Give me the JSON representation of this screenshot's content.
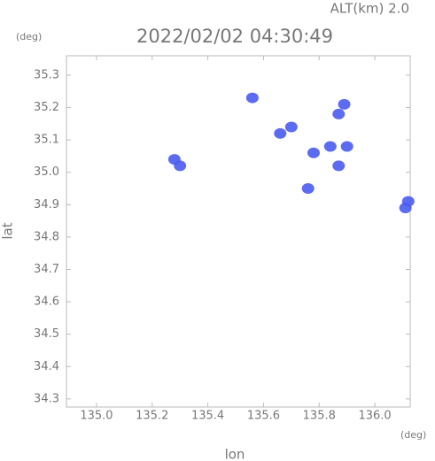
{
  "chart_data": {
    "type": "scatter",
    "title": "2022/02/02 04:30:49",
    "altitude_label": "ALT(km) 2.0",
    "y_unit": "(deg)",
    "x_unit": "(deg)",
    "xlabel": "lon",
    "ylabel": "lat",
    "x": [
      135.56,
      135.66,
      135.7,
      135.89,
      135.87,
      135.84,
      135.9,
      135.78,
      135.87,
      135.3,
      135.28,
      135.76,
      136.11,
      136.12
    ],
    "values": [
      35.23,
      35.12,
      35.14,
      35.21,
      35.18,
      35.08,
      35.08,
      35.06,
      35.02,
      35.02,
      35.04,
      34.95,
      34.89,
      34.91
    ],
    "color": "#4a5cf0",
    "xlim": [
      134.892,
      136.127
    ],
    "ylim": [
      34.275,
      35.36
    ],
    "xticks": [
      {
        "value": 135,
        "label": "135.0"
      },
      135.2,
      135.4,
      135.6,
      135.8,
      {
        "value": 136,
        "label": "136.0"
      }
    ],
    "yticks": [
      34.3,
      34.4,
      34.5,
      34.6,
      34.7,
      34.8,
      34.9,
      {
        "value": 35,
        "label": "35.0"
      },
      35.1,
      35.2,
      35.3
    ],
    "grid": false
  }
}
